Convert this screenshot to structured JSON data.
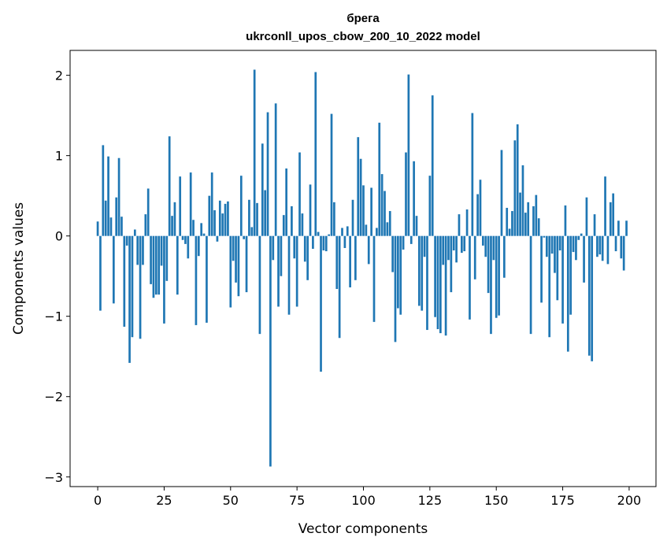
{
  "chart_data": {
    "type": "bar",
    "title": "брега",
    "subtitle": "ukrconll_upos_cbow_200_10_2022 model",
    "xlabel": "Vector components",
    "ylabel": "Components values",
    "xlim": [
      -10.4,
      210.1
    ],
    "ylim": [
      -3.12,
      2.31
    ],
    "xticks": [
      0,
      25,
      50,
      75,
      100,
      125,
      150,
      175,
      200
    ],
    "yticks": [
      -3,
      -2,
      -1,
      0,
      1,
      2
    ],
    "ytick_labels": [
      "−3",
      "−2",
      "−1",
      "0",
      "1",
      "2"
    ],
    "grid": false,
    "bar_color": "#1f77b4",
    "values": [
      0.18,
      -0.93,
      1.13,
      0.44,
      0.99,
      0.23,
      -0.84,
      0.48,
      0.97,
      0.24,
      -1.13,
      -0.12,
      -1.58,
      -1.26,
      0.08,
      -0.36,
      -1.28,
      -0.36,
      0.27,
      0.59,
      -0.6,
      -0.77,
      -0.73,
      -0.73,
      -0.37,
      -1.09,
      -0.56,
      1.24,
      0.25,
      0.42,
      -0.73,
      0.74,
      -0.05,
      -0.1,
      -0.28,
      0.79,
      0.2,
      -1.11,
      -0.25,
      0.16,
      0.03,
      -1.08,
      0.5,
      0.79,
      0.32,
      -0.07,
      0.44,
      0.28,
      0.4,
      0.43,
      -0.89,
      -0.31,
      -0.58,
      -0.75,
      0.75,
      -0.04,
      -0.7,
      0.45,
      0.11,
      2.07,
      0.41,
      -1.22,
      1.15,
      0.57,
      1.54,
      -2.87,
      -0.3,
      1.65,
      -0.88,
      -0.5,
      0.26,
      0.84,
      -0.98,
      0.37,
      -0.28,
      -0.88,
      1.04,
      0.28,
      -0.32,
      -0.55,
      0.64,
      -0.16,
      2.04,
      0.05,
      -1.69,
      -0.18,
      -0.19,
      0.02,
      1.52,
      0.42,
      -0.66,
      -1.27,
      0.1,
      -0.15,
      0.12,
      -0.64,
      0.45,
      -0.55,
      1.23,
      0.96,
      0.63,
      0.14,
      -0.35,
      0.6,
      -1.07,
      0.1,
      1.41,
      0.77,
      0.56,
      0.17,
      0.31,
      -0.45,
      -1.32,
      -0.9,
      -0.98,
      -0.17,
      1.04,
      2.01,
      -0.1,
      0.93,
      0.25,
      -0.87,
      -0.93,
      -0.26,
      -1.17,
      0.75,
      1.75,
      -1.01,
      -1.16,
      -1.21,
      -0.36,
      -1.24,
      -0.3,
      -0.7,
      -0.18,
      -0.33,
      0.27,
      -0.21,
      -0.19,
      0.33,
      -1.04,
      1.53,
      -0.54,
      0.52,
      0.7,
      -0.12,
      -0.26,
      -0.71,
      -1.22,
      -0.3,
      -1.02,
      -0.99,
      1.07,
      -0.52,
      0.35,
      0.09,
      0.31,
      1.19,
      1.39,
      0.54,
      0.88,
      0.29,
      0.42,
      -1.22,
      0.37,
      0.51,
      0.22,
      -0.83,
      -0.02,
      -0.26,
      -1.26,
      -0.22,
      -0.46,
      -0.8,
      -0.18,
      -1.09,
      0.38,
      -1.44,
      -0.98,
      -0.2,
      -0.3,
      -0.05,
      0.03,
      -0.58,
      0.48,
      -1.49,
      -1.56,
      0.27,
      -0.26,
      -0.23,
      -0.31,
      0.74,
      -0.35,
      0.42,
      0.53,
      -0.19,
      0.19,
      -0.28,
      -0.43,
      0.19
    ]
  }
}
